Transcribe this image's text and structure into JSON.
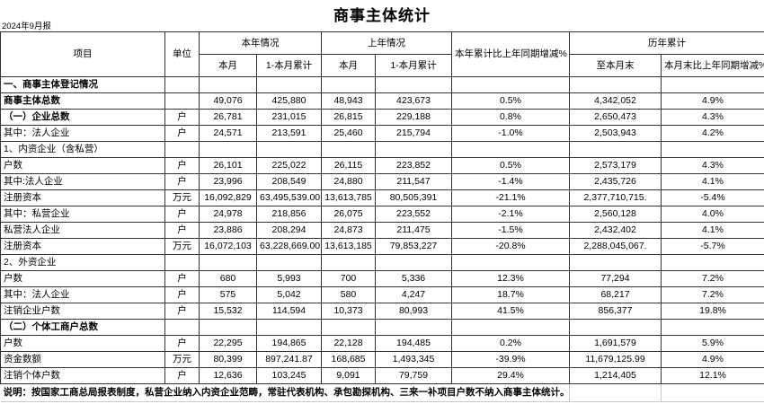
{
  "title": "商事主体统计",
  "report_date": "2024年9月报",
  "header": {
    "item": "项目",
    "unit": "单位",
    "this_year": "本年情况",
    "last_year": "上年情况",
    "ytd_vs_last_year": "本年累计比上年同期增减%",
    "historical": "历年累计",
    "this_month": "本月",
    "cum_to_month": "1-本月累计",
    "this_month_ly": "本月",
    "cum_to_month_ly": "1-本月累计",
    "to_month_end": "至本月末",
    "month_end_vs_ly": "本月末比上年同期增减%"
  },
  "rows": [
    {
      "label": "一、商事主体登记情况",
      "bold": true,
      "indent": 0,
      "unit": "",
      "values": [
        "",
        "",
        "",
        "",
        "",
        "",
        ""
      ]
    },
    {
      "label": "商事主体总数",
      "bold": true,
      "indent": 0,
      "unit": "",
      "values": [
        "49,076",
        "425,880",
        "48,943",
        "423,673",
        "0.5%",
        "4,342,052",
        "4.9%"
      ]
    },
    {
      "label": "（一）企业总数",
      "bold": true,
      "indent": 0,
      "unit": "户",
      "values": [
        "26,781",
        "231,015",
        "26,815",
        "229,188",
        "0.8%",
        "2,650,473",
        "4.3%"
      ]
    },
    {
      "label": "其中：法人企业",
      "bold": false,
      "indent": 1,
      "unit": "户",
      "values": [
        "24,571",
        "213,591",
        "25,460",
        "215,794",
        "-1.0%",
        "2,503,943",
        "4.2%"
      ]
    },
    {
      "label": "1、内资企业（含私营）",
      "bold": false,
      "indent": 0,
      "unit": "",
      "values": [
        "",
        "",
        "",
        "",
        "",
        "",
        ""
      ]
    },
    {
      "label": "户数",
      "bold": false,
      "indent": 1,
      "unit": "户",
      "values": [
        "26,101",
        "225,022",
        "26,115",
        "223,852",
        "0.5%",
        "2,573,179",
        "4.3%"
      ]
    },
    {
      "label": "其中:法人企业",
      "bold": false,
      "indent": 1,
      "unit": "户",
      "values": [
        "23,996",
        "208,549",
        "24,880",
        "211,547",
        "-1.4%",
        "2,435,726",
        "4.1%"
      ]
    },
    {
      "label": "注册资本",
      "bold": false,
      "indent": 1,
      "unit": "万元",
      "values": [
        "16,092,829",
        "63,495,539.00",
        "13,613,785",
        "80,505,391",
        "-21.1%",
        "2,377,710,715.",
        "-5.4%"
      ]
    },
    {
      "label": "其中：私营企业",
      "bold": false,
      "indent": 1,
      "unit": "户",
      "values": [
        "24,978",
        "218,856",
        "26,075",
        "223,552",
        "-2.1%",
        "2,560,128",
        "4.0%"
      ]
    },
    {
      "label": "私营法人企业",
      "bold": false,
      "indent": 3,
      "unit": "户",
      "values": [
        "23,886",
        "208,294",
        "24,873",
        "211,475",
        "-1.5%",
        "2,432,402",
        "4.1%"
      ]
    },
    {
      "label": "注册资本",
      "bold": false,
      "indent": 2,
      "unit": "万元",
      "values": [
        "16,072,103",
        "63,228,669.00",
        "13,613,185",
        "79,853,227",
        "-20.8%",
        "2,288,045,067.",
        "-5.7%"
      ]
    },
    {
      "label": "2、外资企业",
      "bold": false,
      "indent": 0,
      "unit": "",
      "values": [
        "",
        "",
        "",
        "",
        "",
        "",
        ""
      ]
    },
    {
      "label": "户数",
      "bold": false,
      "indent": 1,
      "unit": "户",
      "values": [
        "680",
        "5,993",
        "700",
        "5,336",
        "12.3%",
        "77,294",
        "7.2%"
      ]
    },
    {
      "label": "其中：法人企业",
      "bold": false,
      "indent": 1,
      "unit": "户",
      "values": [
        "575",
        "5,042",
        "580",
        "4,247",
        "18.7%",
        "68,217",
        "7.2%"
      ]
    },
    {
      "label": "注销企业户数",
      "bold": false,
      "indent": 1,
      "unit": "户",
      "values": [
        "15,532",
        "114,594",
        "10,373",
        "80,993",
        "41.5%",
        "856,377",
        "19.8%"
      ]
    },
    {
      "label": "（二）个体工商户总数",
      "bold": true,
      "indent": 0,
      "unit": "",
      "values": [
        "",
        "",
        "",
        "",
        "",
        "",
        ""
      ]
    },
    {
      "label": "户数",
      "bold": false,
      "indent": 1,
      "unit": "户",
      "values": [
        "22,295",
        "194,865",
        "22,128",
        "194,485",
        "0.2%",
        "1,691,579",
        "5.9%"
      ]
    },
    {
      "label": "资金数额",
      "bold": false,
      "indent": 1,
      "unit": "万元",
      "values": [
        "80,399",
        "897,241.87",
        "168,685",
        "1,493,345",
        "-39.9%",
        "11,679,125.99",
        "4.9%"
      ]
    },
    {
      "label": "注销个体户数",
      "bold": false,
      "indent": 1,
      "unit": "户",
      "values": [
        "12,636",
        "103,245",
        "9,091",
        "79,759",
        "29.4%",
        "1,214,405",
        "12.1%"
      ]
    }
  ],
  "note": "说明：按国家工商总局报表制度，私营企业纳入内资企业范畴，常驻代表机构、承包勘探机构、三来一补项目户数不纳入商事主体统计。"
}
